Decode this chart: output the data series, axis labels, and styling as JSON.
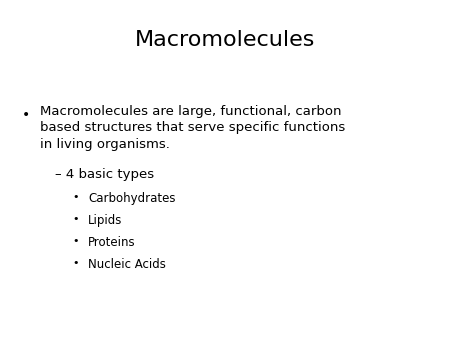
{
  "title": "Macromolecules",
  "title_fontsize": 16,
  "bg_color": "#ffffff",
  "text_color": "#000000",
  "bullet1_text": "Macromolecules are large, functional, carbon\nbased structures that serve specific functions\nin living organisms.",
  "bullet1_fontsize": 9.5,
  "dash_text": "– 4 basic types",
  "dash_fontsize": 9.5,
  "sub_bullets": [
    "Carbohydrates",
    "Lipids",
    "Proteins",
    "Nucleic Acids"
  ],
  "sub_bullet_fontsize": 8.5,
  "bullet_symbol": "•"
}
